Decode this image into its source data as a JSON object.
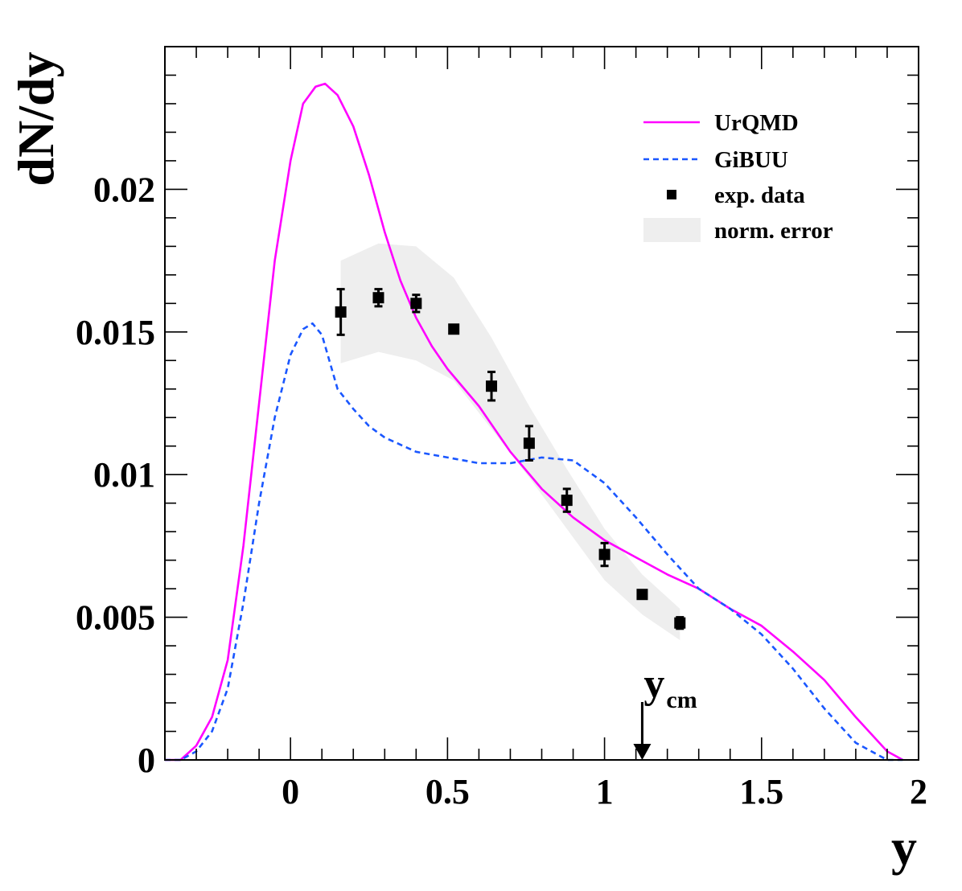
{
  "chart_data": {
    "type": "line",
    "title": "",
    "xlabel": "y",
    "ylabel": "dN/dy",
    "xlim": [
      -0.4,
      2.0
    ],
    "ylim": [
      0,
      0.025
    ],
    "x_ticks": [
      {
        "value": 0,
        "label": "0"
      },
      {
        "value": 0.5,
        "label": "0.5"
      },
      {
        "value": 1,
        "label": "1"
      },
      {
        "value": 1.5,
        "label": "1.5"
      },
      {
        "value": 2,
        "label": "2"
      }
    ],
    "y_ticks": [
      {
        "value": 0,
        "label": "0"
      },
      {
        "value": 0.005,
        "label": "0.005"
      },
      {
        "value": 0.01,
        "label": "0.01"
      },
      {
        "value": 0.015,
        "label": "0.015"
      },
      {
        "value": 0.02,
        "label": "0.02"
      }
    ],
    "series": [
      {
        "name": "UrQMD",
        "kind": "line",
        "color": "#ff00ff",
        "dash": "solid",
        "x": [
          -0.4,
          -0.35,
          -0.3,
          -0.25,
          -0.2,
          -0.15,
          -0.1,
          -0.05,
          0.0,
          0.04,
          0.08,
          0.11,
          0.15,
          0.2,
          0.25,
          0.3,
          0.35,
          0.4,
          0.45,
          0.5,
          0.6,
          0.7,
          0.8,
          0.9,
          1.0,
          1.1,
          1.2,
          1.3,
          1.4,
          1.5,
          1.6,
          1.7,
          1.8,
          1.9,
          1.95
        ],
        "y": [
          0.0,
          0.0,
          0.0005,
          0.0015,
          0.0035,
          0.0075,
          0.0125,
          0.0175,
          0.021,
          0.023,
          0.0236,
          0.0237,
          0.0233,
          0.0222,
          0.0205,
          0.0185,
          0.0168,
          0.0155,
          0.0145,
          0.0137,
          0.0124,
          0.0108,
          0.0095,
          0.0085,
          0.0077,
          0.0071,
          0.0065,
          0.006,
          0.0053,
          0.0047,
          0.0038,
          0.0028,
          0.0015,
          0.0003,
          0.0
        ]
      },
      {
        "name": "GiBUU",
        "kind": "line",
        "color": "#1a57ff",
        "dash": "dashed",
        "x": [
          -0.4,
          -0.35,
          -0.3,
          -0.25,
          -0.2,
          -0.15,
          -0.1,
          -0.05,
          0.0,
          0.04,
          0.07,
          0.1,
          0.15,
          0.2,
          0.25,
          0.3,
          0.4,
          0.5,
          0.6,
          0.7,
          0.8,
          0.9,
          1.0,
          1.1,
          1.2,
          1.3,
          1.4,
          1.5,
          1.6,
          1.7,
          1.8,
          1.9,
          1.95
        ],
        "y": [
          0.0,
          0.0,
          0.0003,
          0.001,
          0.0025,
          0.0055,
          0.009,
          0.012,
          0.0142,
          0.0151,
          0.0153,
          0.0149,
          0.013,
          0.0123,
          0.0117,
          0.0113,
          0.0108,
          0.0106,
          0.0104,
          0.0104,
          0.0106,
          0.0105,
          0.0097,
          0.0085,
          0.0072,
          0.006,
          0.0053,
          0.0044,
          0.0032,
          0.0018,
          0.0006,
          0.0,
          0.0
        ]
      },
      {
        "name": "exp. data",
        "kind": "points",
        "color": "#000000",
        "x": [
          0.16,
          0.28,
          0.4,
          0.52,
          0.64,
          0.76,
          0.88,
          1.0,
          1.12,
          1.24
        ],
        "y": [
          0.0157,
          0.0162,
          0.016,
          0.0151,
          0.0131,
          0.0111,
          0.0091,
          0.0072,
          0.0058,
          0.0048
        ],
        "err": [
          0.0008,
          0.0003,
          0.0003,
          0.0,
          0.0005,
          0.0006,
          0.0004,
          0.0004,
          0.0,
          0.0002
        ]
      },
      {
        "name": "norm. error",
        "kind": "band",
        "color": "#eeeeee",
        "x": [
          0.16,
          0.28,
          0.4,
          0.52,
          0.64,
          0.76,
          0.88,
          1.0,
          1.12,
          1.24
        ],
        "upper": [
          0.0175,
          0.0181,
          0.018,
          0.0169,
          0.0148,
          0.0124,
          0.0102,
          0.0081,
          0.0065,
          0.0053
        ],
        "lower": [
          0.0139,
          0.0143,
          0.014,
          0.0133,
          0.0116,
          0.0099,
          0.0081,
          0.0063,
          0.0051,
          0.0042
        ]
      }
    ],
    "annotation": {
      "text_main": "y",
      "text_sub": "cm",
      "x": 1.12,
      "arrow": "down"
    },
    "legend": {
      "position": "top-right",
      "entries": [
        "UrQMD",
        "GiBUU",
        "exp. data",
        "norm. error"
      ]
    }
  }
}
